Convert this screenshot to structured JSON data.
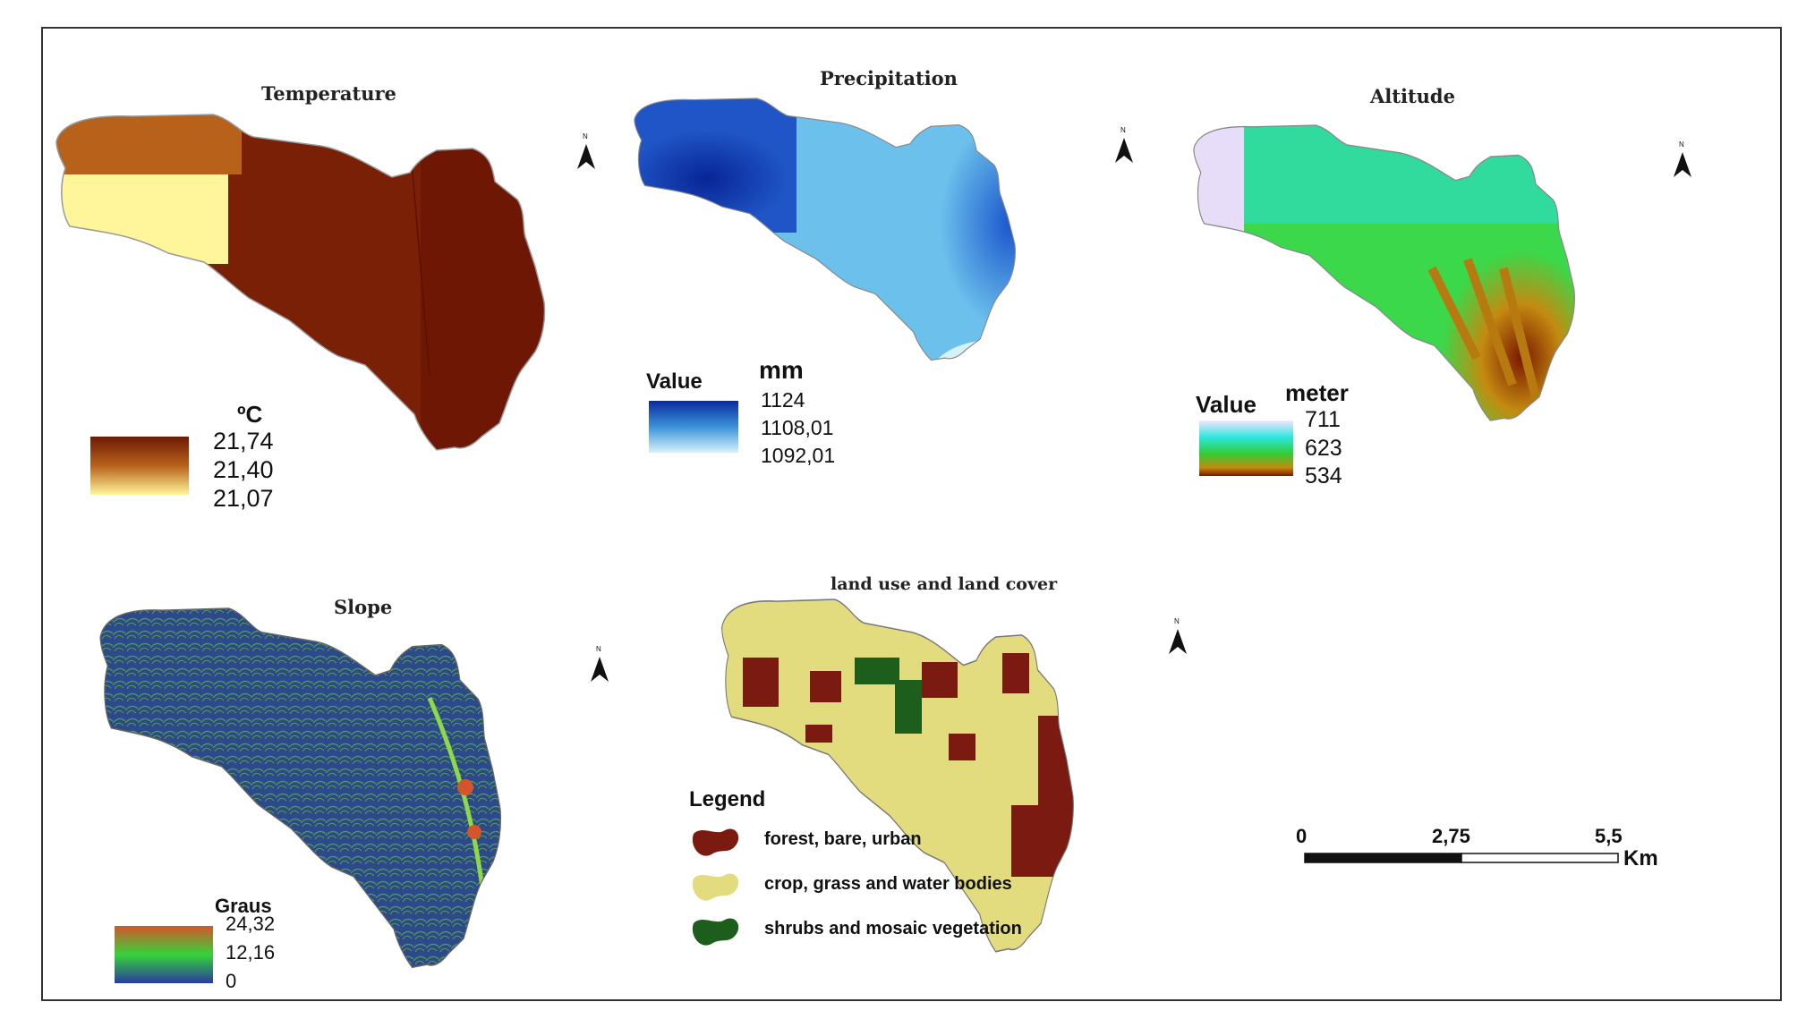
{
  "figure": {
    "panels": {
      "temperature": {
        "title": "Temperature",
        "unit": "ºC",
        "legend_values": [
          "21,74",
          "21,40",
          "21,07"
        ],
        "colors": {
          "high": "#6e1a05",
          "mid": "#b8611a",
          "low": "#fff59a"
        }
      },
      "precipitation": {
        "title": "Precipitation",
        "legend_heading": "Value",
        "unit": "mm",
        "legend_values": [
          "1124",
          "1108,01",
          "1092,01"
        ],
        "colors": {
          "high": "#0a2a9e",
          "mid": "#3a92d8",
          "low": "#d8f2fb"
        }
      },
      "altitude": {
        "title": "Altitude",
        "legend_heading": "Value",
        "unit": "meter",
        "legend_values": [
          "711",
          "623",
          "534"
        ],
        "colors": {
          "high": "#f2e6ff",
          "mid1": "#2ee6e0",
          "mid2": "#33cc33",
          "mid3": "#c48a10",
          "low": "#7a1800"
        }
      },
      "slope": {
        "title": "Slope",
        "unit": "Graus",
        "legend_values": [
          "24,32",
          "12,16",
          "0"
        ],
        "colors": {
          "high": "#d4552a",
          "mid": "#36d23a",
          "low": "#2a3c9e"
        }
      },
      "landuse": {
        "title": "land use and land cover",
        "legend_heading": "Legend",
        "classes": [
          {
            "label": "forest, bare, urban",
            "color": "#7a1a10"
          },
          {
            "label": "crop, grass and water bodies",
            "color": "#e3dc7e"
          },
          {
            "label": "shrubs and mosaic vegetation",
            "color": "#1e5e1c"
          }
        ]
      }
    },
    "north_arrow": {
      "label": "N"
    },
    "scale_bar": {
      "ticks": [
        "0",
        "2,75",
        "5,5"
      ],
      "unit": "Km"
    }
  }
}
